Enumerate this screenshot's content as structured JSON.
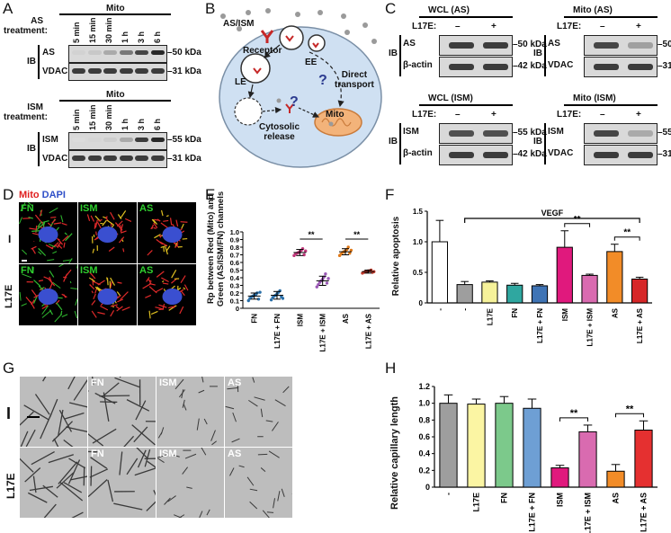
{
  "panels": [
    "A",
    "B",
    "C",
    "D",
    "E",
    "F",
    "G",
    "H"
  ],
  "panelA": {
    "top": {
      "header": "Mito",
      "treatment_label": "AS\ntreatment:",
      "timepoints": [
        "5 min",
        "15 min",
        "30 min",
        "1 h",
        "3 h",
        "6 h"
      ],
      "ib": "IB",
      "rows": [
        {
          "name": "AS",
          "kda": "–50 kDa"
        },
        {
          "name": "VDAC",
          "kda": "–31 kDa"
        }
      ],
      "as_band_intensity": [
        0.1,
        0.15,
        0.3,
        0.55,
        0.8,
        0.95
      ]
    },
    "bottom": {
      "header": "Mito",
      "treatment_label": "ISM\ntreatment:",
      "timepoints": [
        "5 min",
        "15 min",
        "30 min",
        "1 h",
        "3 h",
        "6 h"
      ],
      "ib": "IB",
      "rows": [
        {
          "name": "ISM",
          "kda": "–55 kDa"
        },
        {
          "name": "VDAC",
          "kda": "–31 kDa"
        }
      ],
      "ism_band_intensity": [
        0.05,
        0.08,
        0.12,
        0.3,
        0.85,
        0.95
      ]
    }
  },
  "panelB": {
    "labels": {
      "ligand": "AS/ISM",
      "receptor": "Receptor",
      "ee": "EE",
      "le": "LE",
      "cytosolic": "Cytosolic\nrelease",
      "direct": "Direct\ntransport",
      "mito": "Mito",
      "q": "?"
    }
  },
  "panelC": {
    "blots": [
      {
        "title": "WCL (AS)",
        "l17e": "L17E:",
        "signs": [
          "–",
          "+"
        ],
        "ib": "IB",
        "rows": [
          {
            "name": "AS",
            "kda": "–50 kDa"
          },
          {
            "name": "β-actin",
            "kda": "–42 kDa"
          }
        ]
      },
      {
        "title": "Mito (AS)",
        "l17e": "L17E:",
        "signs": [
          "–",
          "+"
        ],
        "ib": "IB",
        "rows": [
          {
            "name": "AS",
            "kda": "–50 kDa"
          },
          {
            "name": "VDAC",
            "kda": "–31 kDa"
          }
        ]
      },
      {
        "title": "WCL (ISM)",
        "l17e": "L17E:",
        "signs": [
          "–",
          "+"
        ],
        "ib": "IB",
        "rows": [
          {
            "name": "ISM",
            "kda": "–55 kDa"
          },
          {
            "name": "β-actin",
            "kda": "–42 kDa"
          }
        ]
      },
      {
        "title": "Mito (ISM)",
        "l17e": "L17E:",
        "signs": [
          "–",
          "+"
        ],
        "ib": "IB",
        "rows": [
          {
            "name": "ISM",
            "kda": "–55 kDa"
          },
          {
            "name": "VDAC",
            "kda": "–31 kDa"
          }
        ]
      }
    ]
  },
  "panelD": {
    "legend_mito": "Mito",
    "legend_dapi": "DAPI",
    "row_labels": [
      "I",
      "L17E"
    ],
    "columns": [
      "FN",
      "ISM",
      "AS"
    ]
  },
  "panelG": {
    "row_labels": [
      "I",
      "L17E"
    ],
    "columns": [
      "",
      "FN",
      "ISM",
      "AS"
    ]
  },
  "chart_data": [
    {
      "panel": "E",
      "type": "scatter",
      "ylabel": "Rp between Red (Mito) and\nGreen (AS/ISM/FN) channels",
      "xlabel": "",
      "categories": [
        "FN",
        "L17E + FN",
        "ISM",
        "L17E + ISM",
        "AS",
        "L17E + AS"
      ],
      "ylim": [
        0,
        1.0
      ],
      "yticks": [
        "0",
        "0.1",
        "0.2",
        "0.3",
        "0.4",
        "0.5",
        "0.6",
        "0.7",
        "0.8",
        "0.9",
        "1.0"
      ],
      "means": [
        0.16,
        0.17,
        0.73,
        0.36,
        0.74,
        0.48
      ],
      "sd": [
        0.04,
        0.05,
        0.04,
        0.06,
        0.04,
        0.02
      ],
      "points": [
        [
          0.1,
          0.13,
          0.15,
          0.16,
          0.17,
          0.18,
          0.2,
          0.12,
          0.21
        ],
        [
          0.11,
          0.14,
          0.16,
          0.17,
          0.19,
          0.21,
          0.23,
          0.15,
          0.13
        ],
        [
          0.69,
          0.71,
          0.72,
          0.73,
          0.74,
          0.76,
          0.78,
          0.7,
          0.75
        ],
        [
          0.28,
          0.31,
          0.34,
          0.36,
          0.38,
          0.41,
          0.45,
          0.33,
          0.39
        ],
        [
          0.69,
          0.71,
          0.73,
          0.74,
          0.75,
          0.77,
          0.8,
          0.72,
          0.76
        ],
        [
          0.46,
          0.47,
          0.48,
          0.48,
          0.49,
          0.49,
          0.5,
          0.47,
          0.48
        ]
      ],
      "colors": [
        "#2a6fa8",
        "#2a6fa8",
        "#c0367a",
        "#9b59b6",
        "#e07a1a",
        "#c0392b"
      ],
      "significance": [
        {
          "from": 2,
          "to": 3,
          "label": "**"
        },
        {
          "from": 4,
          "to": 5,
          "label": "**"
        }
      ]
    },
    {
      "panel": "F",
      "type": "bar",
      "ylabel": "Relative apoptosis",
      "categories": [
        "-",
        "-",
        "L17E",
        "FN",
        "L17E + FN",
        "ISM",
        "L17E + ISM",
        "AS",
        "L17E + AS"
      ],
      "values": [
        1.0,
        0.3,
        0.34,
        0.29,
        0.28,
        0.91,
        0.45,
        0.84,
        0.39
      ],
      "errors": [
        0.35,
        0.05,
        0.02,
        0.03,
        0.02,
        0.27,
        0.02,
        0.12,
        0.03
      ],
      "colors": [
        "#ffffff",
        "#9e9e9e",
        "#f6f29a",
        "#2fa7a0",
        "#3f74b5",
        "#e0197d",
        "#d96bb0",
        "#f28c28",
        "#d62728"
      ],
      "ylim": [
        0,
        1.5
      ],
      "yticks": [
        "0",
        "0.5",
        "1.0",
        "1.5"
      ],
      "group_label": "VEGF",
      "significance": [
        {
          "from": 5,
          "to": 6,
          "label": "**"
        },
        {
          "from": 7,
          "to": 8,
          "label": "**"
        }
      ]
    },
    {
      "panel": "H",
      "type": "bar",
      "ylabel": "Relative capillary length",
      "categories": [
        "-",
        "L17E",
        "FN",
        "L17E + FN",
        "ISM",
        "L17E + ISM",
        "AS",
        "L17E + AS"
      ],
      "values": [
        1.0,
        0.99,
        1.0,
        0.94,
        0.23,
        0.66,
        0.19,
        0.68
      ],
      "errors": [
        0.1,
        0.06,
        0.08,
        0.11,
        0.03,
        0.08,
        0.08,
        0.11
      ],
      "colors": [
        "#9e9e9e",
        "#fbf5a3",
        "#7cc98b",
        "#6e9fd4",
        "#e0197d",
        "#d96bb0",
        "#f28c28",
        "#e53030"
      ],
      "ylim": [
        0,
        1.2
      ],
      "yticks": [
        "0",
        "0.2",
        "0.4",
        "0.6",
        "0.8",
        "1.0",
        "1.2"
      ],
      "significance": [
        {
          "from": 4,
          "to": 5,
          "label": "**"
        },
        {
          "from": 6,
          "to": 7,
          "label": "**"
        }
      ]
    }
  ]
}
